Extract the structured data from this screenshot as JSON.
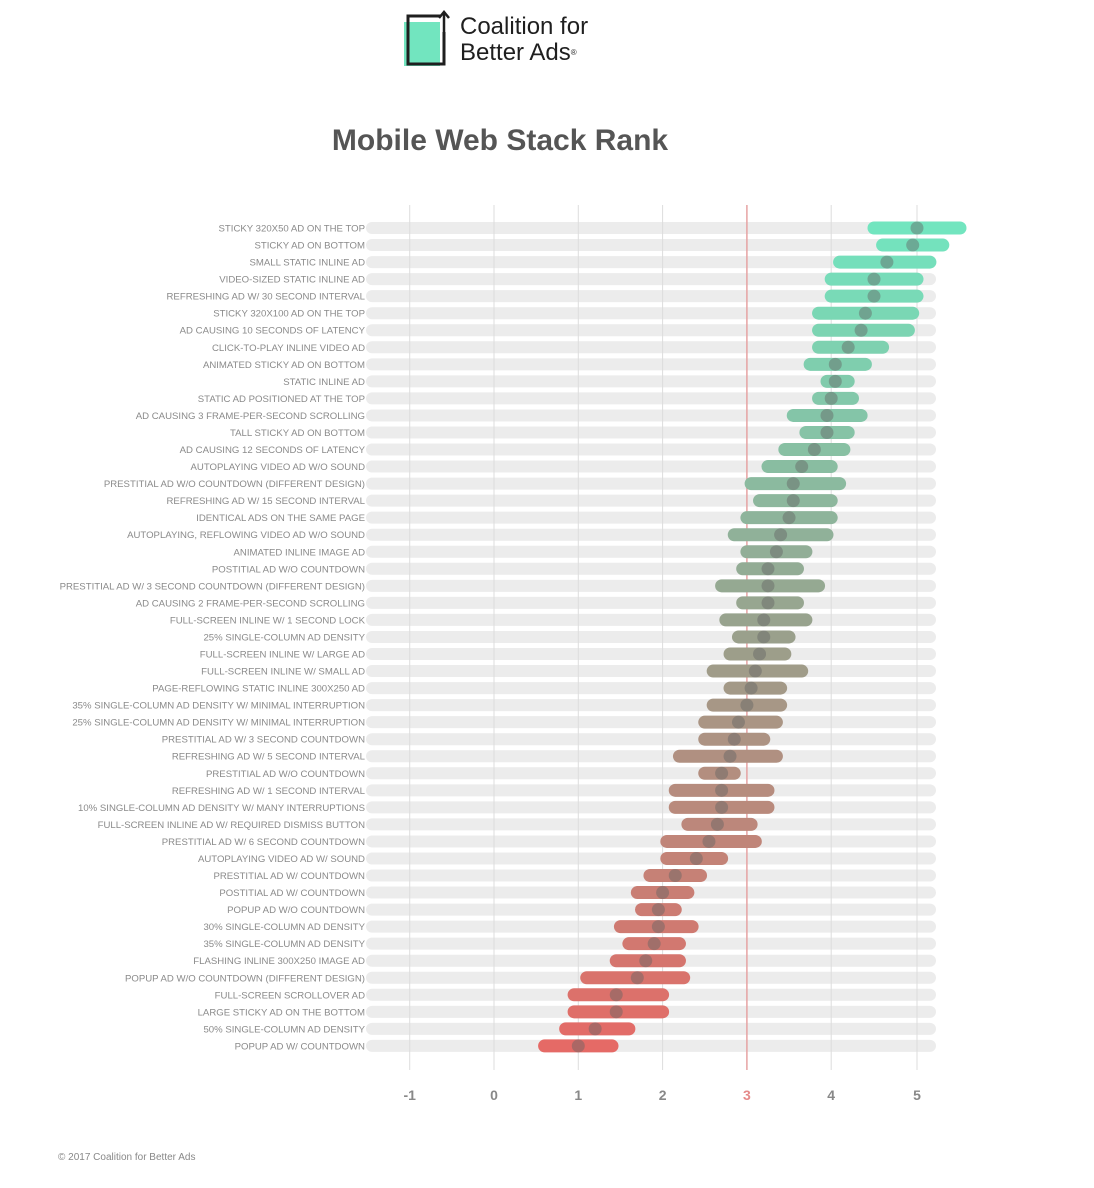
{
  "logo": {
    "line1": "Coalition for",
    "line2": "Better Ads",
    "reg_mark": "®"
  },
  "footer": "© 2017 Coalition for Better Ads",
  "colors": {
    "top": "#72e5bf",
    "middle": "#9aa08c",
    "bottom": "#e56a66",
    "threshold_line": "#e6a3a3",
    "track": "#ececec",
    "gridline": "#dddddd",
    "tick_label": "#888888",
    "highlight_tick": "#e58a8a"
  },
  "chart_data": {
    "type": "range-dot",
    "title": "Mobile Web Stack Rank",
    "x_ticks": [
      -1,
      0,
      1,
      2,
      3,
      4,
      5
    ],
    "x_tick_labels": [
      "-1",
      "0",
      "1",
      "2",
      "3",
      "4",
      "5"
    ],
    "highlight_tick": 3,
    "threshold": 3,
    "xlim": [
      -1.4,
      5.6
    ],
    "grid": true,
    "items": [
      {
        "label": "STICKY 320X50 AD ON THE TOP",
        "low": 4.5,
        "high": 5.5,
        "mean": 5.0
      },
      {
        "label": "STICKY AD ON BOTTOM",
        "low": 4.6,
        "high": 5.3,
        "mean": 4.95
      },
      {
        "label": "SMALL STATIC INLINE AD",
        "low": 4.1,
        "high": 5.15,
        "mean": 4.65
      },
      {
        "label": "VIDEO-SIZED STATIC INLINE AD",
        "low": 4.0,
        "high": 5.0,
        "mean": 4.5
      },
      {
        "label": "REFRESHING AD W/ 30 SECOND INTERVAL",
        "low": 4.0,
        "high": 5.0,
        "mean": 4.5
      },
      {
        "label": "STICKY 320X100 AD ON THE TOP",
        "low": 3.85,
        "high": 4.95,
        "mean": 4.4
      },
      {
        "label": "AD CAUSING 10 SECONDS OF LATENCY",
        "low": 3.85,
        "high": 4.9,
        "mean": 4.35
      },
      {
        "label": "CLICK-TO-PLAY INLINE VIDEO AD",
        "low": 3.85,
        "high": 4.6,
        "mean": 4.2
      },
      {
        "label": "ANIMATED STICKY AD ON BOTTOM",
        "low": 3.75,
        "high": 4.4,
        "mean": 4.05
      },
      {
        "label": "STATIC INLINE AD",
        "low": 3.95,
        "high": 4.2,
        "mean": 4.05
      },
      {
        "label": "STATIC AD POSITIONED AT THE TOP",
        "low": 3.85,
        "high": 4.25,
        "mean": 4.0
      },
      {
        "label": "AD CAUSING 3 FRAME-PER-SECOND SCROLLING",
        "low": 3.55,
        "high": 4.35,
        "mean": 3.95
      },
      {
        "label": "TALL STICKY AD ON BOTTOM",
        "low": 3.7,
        "high": 4.2,
        "mean": 3.95
      },
      {
        "label": "AD CAUSING 12 SECONDS OF LATENCY",
        "low": 3.45,
        "high": 4.15,
        "mean": 3.8
      },
      {
        "label": "AUTOPLAYING VIDEO AD W/O SOUND",
        "low": 3.25,
        "high": 4.0,
        "mean": 3.65
      },
      {
        "label": "PRESTITIAL AD W/O COUNTDOWN (DIFFERENT DESIGN)",
        "low": 3.05,
        "high": 4.1,
        "mean": 3.55
      },
      {
        "label": "REFRESHING AD W/ 15 SECOND INTERVAL",
        "low": 3.15,
        "high": 4.0,
        "mean": 3.55
      },
      {
        "label": "IDENTICAL ADS ON THE SAME PAGE",
        "low": 3.0,
        "high": 4.0,
        "mean": 3.5
      },
      {
        "label": "AUTOPLAYING, REFLOWING VIDEO AD W/O SOUND",
        "low": 2.85,
        "high": 3.95,
        "mean": 3.4
      },
      {
        "label": "ANIMATED INLINE IMAGE AD",
        "low": 3.0,
        "high": 3.7,
        "mean": 3.35
      },
      {
        "label": "POSTITIAL AD W/O COUNTDOWN",
        "low": 2.95,
        "high": 3.6,
        "mean": 3.25
      },
      {
        "label": "PRESTITIAL AD W/ 3 SECOND COUNTDOWN (DIFFERENT DESIGN)",
        "low": 2.7,
        "high": 3.85,
        "mean": 3.25
      },
      {
        "label": "AD CAUSING 2 FRAME-PER-SECOND SCROLLING",
        "low": 2.95,
        "high": 3.6,
        "mean": 3.25
      },
      {
        "label": "FULL-SCREEN INLINE W/ 1 SECOND LOCK",
        "low": 2.75,
        "high": 3.7,
        "mean": 3.2
      },
      {
        "label": "25% SINGLE-COLUMN AD DENSITY",
        "low": 2.9,
        "high": 3.5,
        "mean": 3.2
      },
      {
        "label": "FULL-SCREEN INLINE W/ LARGE AD",
        "low": 2.8,
        "high": 3.45,
        "mean": 3.15
      },
      {
        "label": "FULL-SCREEN INLINE W/ SMALL AD",
        "low": 2.6,
        "high": 3.65,
        "mean": 3.1
      },
      {
        "label": "PAGE-REFLOWING STATIC INLINE 300X250 AD",
        "low": 2.8,
        "high": 3.4,
        "mean": 3.05
      },
      {
        "label": "35% SINGLE-COLUMN AD DENSITY W/ MINIMAL INTERRUPTION",
        "low": 2.6,
        "high": 3.4,
        "mean": 3.0
      },
      {
        "label": "25% SINGLE-COLUMN AD DENSITY W/ MINIMAL INTERRUPTION",
        "low": 2.5,
        "high": 3.35,
        "mean": 2.9
      },
      {
        "label": "PRESTITIAL AD W/ 3 SECOND COUNTDOWN",
        "low": 2.5,
        "high": 3.2,
        "mean": 2.85
      },
      {
        "label": "REFRESHING AD W/ 5 SECOND INTERVAL",
        "low": 2.2,
        "high": 3.35,
        "mean": 2.8
      },
      {
        "label": "PRESTITIAL AD W/O COUNTDOWN",
        "low": 2.5,
        "high": 2.85,
        "mean": 2.7
      },
      {
        "label": "REFRESHING AD W/ 1 SECOND INTERVAL",
        "low": 2.15,
        "high": 3.25,
        "mean": 2.7
      },
      {
        "label": "10% SINGLE-COLUMN AD DENSITY W/ MANY INTERRUPTIONS",
        "low": 2.15,
        "high": 3.25,
        "mean": 2.7
      },
      {
        "label": "FULL-SCREEN INLINE AD W/ REQUIRED DISMISS BUTTON",
        "low": 2.3,
        "high": 3.05,
        "mean": 2.65
      },
      {
        "label": "PRESTITIAL AD W/ 6 SECOND COUNTDOWN",
        "low": 2.05,
        "high": 3.1,
        "mean": 2.55
      },
      {
        "label": "AUTOPLAYING VIDEO AD W/ SOUND",
        "low": 2.05,
        "high": 2.7,
        "mean": 2.4
      },
      {
        "label": "PRESTITIAL AD W/ COUNTDOWN",
        "low": 1.85,
        "high": 2.45,
        "mean": 2.15
      },
      {
        "label": "POSTITIAL AD W/ COUNTDOWN",
        "low": 1.7,
        "high": 2.3,
        "mean": 2.0
      },
      {
        "label": "POPUP AD W/O COUNTDOWN",
        "low": 1.75,
        "high": 2.15,
        "mean": 1.95
      },
      {
        "label": "30% SINGLE-COLUMN AD DENSITY",
        "low": 1.5,
        "high": 2.35,
        "mean": 1.95
      },
      {
        "label": "35% SINGLE-COLUMN AD DENSITY",
        "low": 1.6,
        "high": 2.2,
        "mean": 1.9
      },
      {
        "label": "FLASHING INLINE 300X250 IMAGE AD",
        "low": 1.45,
        "high": 2.2,
        "mean": 1.8
      },
      {
        "label": "POPUP AD W/O COUNTDOWN (DIFFERENT DESIGN)",
        "low": 1.1,
        "high": 2.25,
        "mean": 1.7
      },
      {
        "label": "FULL-SCREEN SCROLLOVER AD",
        "low": 0.95,
        "high": 2.0,
        "mean": 1.45
      },
      {
        "label": "LARGE STICKY AD ON THE BOTTOM",
        "low": 0.95,
        "high": 2.0,
        "mean": 1.45
      },
      {
        "label": "50% SINGLE-COLUMN AD DENSITY",
        "low": 0.85,
        "high": 1.6,
        "mean": 1.2
      },
      {
        "label": "POPUP AD W/ COUNTDOWN",
        "low": 0.6,
        "high": 1.4,
        "mean": 1.0
      }
    ]
  }
}
